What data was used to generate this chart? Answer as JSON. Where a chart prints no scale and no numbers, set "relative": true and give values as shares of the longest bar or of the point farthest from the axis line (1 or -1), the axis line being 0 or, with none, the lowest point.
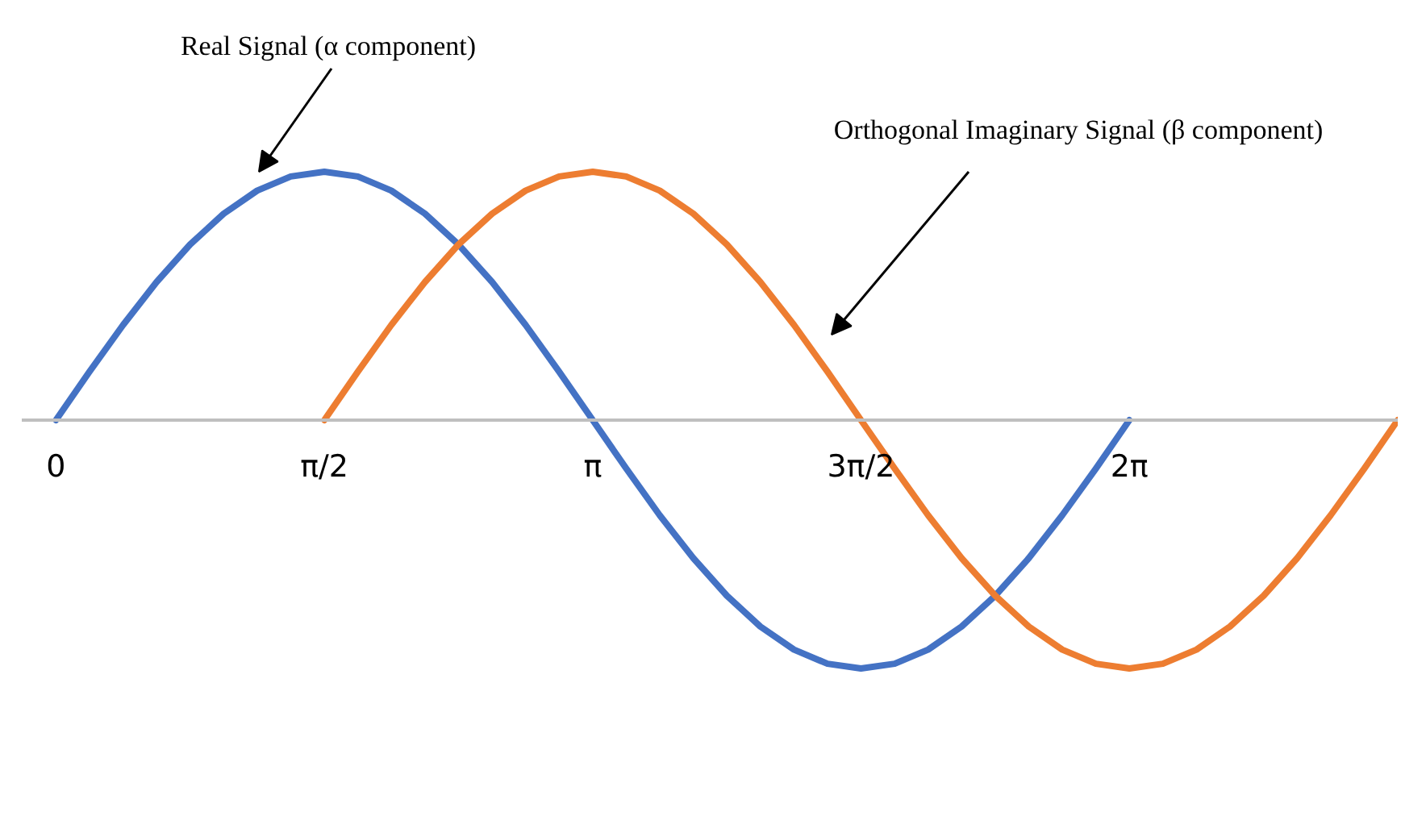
{
  "chart_data": {
    "type": "line",
    "relative": true,
    "tick_labels": "x",
    "xlim": [
      -0.2,
      7.854
    ],
    "xticks": [
      {
        "value": 0,
        "label": "0"
      },
      {
        "value": 1.571,
        "label": "π/2"
      },
      {
        "value": 3.142,
        "label": "π"
      },
      {
        "value": 4.712,
        "label": "3π/2"
      },
      {
        "value": 6.283,
        "label": "2π"
      }
    ],
    "series": [
      {
        "color": "#4472c4",
        "x": [
          0,
          0.196,
          0.393,
          0.589,
          0.785,
          0.982,
          1.178,
          1.374,
          1.571,
          1.767,
          1.963,
          2.16,
          2.356,
          2.553,
          2.749,
          2.945,
          3.142,
          3.338,
          3.534,
          3.731,
          3.927,
          4.123,
          4.32,
          4.516,
          4.712,
          4.909,
          5.105,
          5.301,
          5.498,
          5.694,
          5.89,
          6.087,
          6.283
        ],
        "values": [
          0,
          0.195,
          0.383,
          0.556,
          0.707,
          0.831,
          0.924,
          0.981,
          1,
          0.981,
          0.924,
          0.831,
          0.707,
          0.556,
          0.383,
          0.195,
          0,
          -0.195,
          -0.383,
          -0.556,
          -0.707,
          -0.831,
          -0.924,
          -0.981,
          -1,
          -0.981,
          -0.924,
          -0.831,
          -0.707,
          -0.556,
          -0.383,
          -0.195,
          0
        ]
      },
      {
        "color": "#ed7d31",
        "x": [
          1.571,
          1.767,
          1.963,
          2.16,
          2.356,
          2.553,
          2.749,
          2.945,
          3.142,
          3.338,
          3.534,
          3.731,
          3.927,
          4.123,
          4.32,
          4.516,
          4.712,
          4.909,
          5.105,
          5.301,
          5.498,
          5.694,
          5.89,
          6.087,
          6.283,
          6.479,
          6.676,
          6.872,
          7.069,
          7.265,
          7.461,
          7.658,
          7.854
        ],
        "values": [
          0,
          0.195,
          0.383,
          0.556,
          0.707,
          0.831,
          0.924,
          0.981,
          1,
          0.981,
          0.924,
          0.831,
          0.707,
          0.556,
          0.383,
          0.195,
          0,
          -0.195,
          -0.383,
          -0.556,
          -0.707,
          -0.831,
          -0.924,
          -0.981,
          -1,
          -0.981,
          -0.924,
          -0.831,
          -0.707,
          -0.556,
          -0.383,
          -0.195,
          0
        ]
      }
    ],
    "annotations": [
      "Real Signal (α component)",
      "Orthogonal Imaginary Signal (β component)"
    ]
  }
}
